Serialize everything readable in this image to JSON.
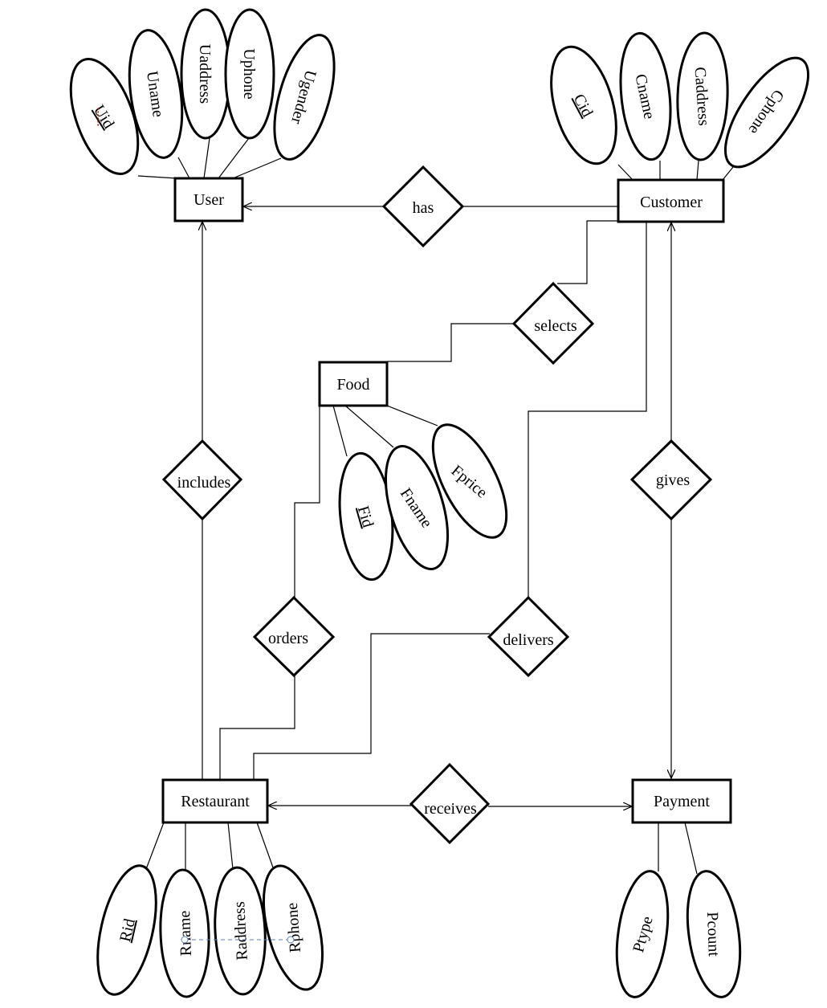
{
  "entities": {
    "user": "User",
    "customer": "Customer",
    "food": "Food",
    "restaurant": "Restaurant",
    "payment": "Payment"
  },
  "relationships": {
    "has": "has",
    "selects": "selects",
    "includes": "includes",
    "gives": "gives",
    "orders": "orders",
    "delivers": "delivers",
    "receives": "receives"
  },
  "attributes": {
    "uid": "Uid",
    "uname": "Uname",
    "uaddress": "Uaddress",
    "uphone": "Uphone",
    "ugender": "Ugender",
    "cid": "Cid",
    "cname": "Cname",
    "caddress": "Caddress",
    "cphone": "Cphone",
    "fid": "Fid",
    "fname": "Fname",
    "fprice": "Fprice",
    "rid": "Rid",
    "rname": "Rname",
    "raddress": "Raddress",
    "rphone": "Rphone",
    "ptype": "Ptype",
    "pcount": "Pcount"
  }
}
